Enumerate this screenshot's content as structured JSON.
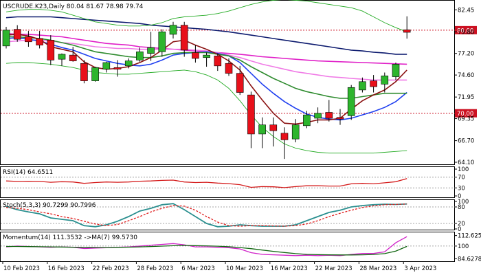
{
  "colors": {
    "bull": "#2db52d",
    "bear": "#e8101a",
    "level": "#cc1122",
    "sma_navy": "#0c1a6e",
    "sma_magenta": "#e020c8",
    "sma_pink": "#f07ae6",
    "ema_dark_red": "#8a1010",
    "ema_blue": "#1f3ff0",
    "ema_green": "#2e8b2e",
    "bollinger": "#22aa22",
    "rsi": "#d41a1a",
    "stoch_k": "#2a8f8f",
    "stoch_d": "#e02020",
    "momentum": "#d020c8",
    "momentum_ma": "#116611"
  },
  "chart_data": [
    {
      "type": "candlestick",
      "title": "USCRUDE.K23,Daily  80.04 81.67 78.98 79.74",
      "ylim": [
        64.1,
        83.3
      ],
      "yticks": [
        82.45,
        79.8,
        77.2,
        74.6,
        71.95,
        69.35,
        66.7,
        64.1
      ],
      "ytick_labels": [
        "82.45",
        "79.80",
        "77.20",
        "74.60",
        "71.95",
        "69.35",
        "66.70",
        "64.10"
      ],
      "x_labels": [
        {
          "index": 0,
          "label": "10 Feb 2023"
        },
        {
          "index": 4,
          "label": "16 Feb 2023"
        },
        {
          "index": 8,
          "label": "22 Feb 2023"
        },
        {
          "index": 12,
          "label": "28 Feb 2023"
        },
        {
          "index": 16,
          "label": "6 Mar 2023"
        },
        {
          "index": 20,
          "label": "10 Mar 2023"
        },
        {
          "index": 24,
          "label": "16 Mar 2023"
        },
        {
          "index": 28,
          "label": "22 Mar 2023"
        },
        {
          "index": 32,
          "label": "28 Mar 2023"
        },
        {
          "index": 36,
          "label": "3 Apr 2023"
        }
      ],
      "levels": [
        {
          "value": 80.0,
          "label": "80.00"
        },
        {
          "value": 70.0,
          "label": "70.00"
        }
      ],
      "candles": [
        {
          "o": 78.1,
          "h": 80.4,
          "l": 77.8,
          "c": 80.0
        },
        {
          "o": 80.1,
          "h": 80.6,
          "l": 78.6,
          "c": 78.9
        },
        {
          "o": 79.2,
          "h": 79.9,
          "l": 78.0,
          "c": 78.6
        },
        {
          "o": 79.0,
          "h": 79.9,
          "l": 77.8,
          "c": 78.2
        },
        {
          "o": 78.8,
          "h": 79.4,
          "l": 75.8,
          "c": 76.4
        },
        {
          "o": 76.5,
          "h": 77.2,
          "l": 75.7,
          "c": 77.1
        },
        {
          "o": 77.0,
          "h": 78.0,
          "l": 76.2,
          "c": 76.3
        },
        {
          "o": 76.0,
          "h": 76.4,
          "l": 73.6,
          "c": 73.9
        },
        {
          "o": 73.9,
          "h": 75.6,
          "l": 73.8,
          "c": 75.5
        },
        {
          "o": 75.3,
          "h": 76.2,
          "l": 74.9,
          "c": 76.1
        },
        {
          "o": 75.5,
          "h": 76.4,
          "l": 74.4,
          "c": 75.3
        },
        {
          "o": 75.7,
          "h": 76.6,
          "l": 75.4,
          "c": 76.3
        },
        {
          "o": 76.4,
          "h": 77.9,
          "l": 76.2,
          "c": 77.4
        },
        {
          "o": 77.2,
          "h": 79.8,
          "l": 76.3,
          "c": 77.9
        },
        {
          "o": 77.4,
          "h": 80.1,
          "l": 76.8,
          "c": 79.8
        },
        {
          "o": 79.5,
          "h": 81.0,
          "l": 79.0,
          "c": 80.6
        },
        {
          "o": 80.6,
          "h": 81.0,
          "l": 76.8,
          "c": 77.6
        },
        {
          "o": 77.3,
          "h": 78.2,
          "l": 76.1,
          "c": 76.6
        },
        {
          "o": 76.7,
          "h": 77.3,
          "l": 75.6,
          "c": 77.0
        },
        {
          "o": 76.9,
          "h": 77.2,
          "l": 75.1,
          "c": 75.7
        },
        {
          "o": 76.0,
          "h": 76.6,
          "l": 74.5,
          "c": 74.8
        },
        {
          "o": 74.8,
          "h": 75.7,
          "l": 72.2,
          "c": 72.5
        },
        {
          "o": 72.2,
          "h": 72.6,
          "l": 65.8,
          "c": 67.5
        },
        {
          "o": 67.5,
          "h": 69.5,
          "l": 65.8,
          "c": 68.6
        },
        {
          "o": 68.6,
          "h": 69.5,
          "l": 66.0,
          "c": 67.9
        },
        {
          "o": 67.6,
          "h": 68.3,
          "l": 64.5,
          "c": 66.8
        },
        {
          "o": 66.9,
          "h": 69.3,
          "l": 66.5,
          "c": 68.6
        },
        {
          "o": 68.5,
          "h": 70.3,
          "l": 68.2,
          "c": 69.8
        },
        {
          "o": 69.4,
          "h": 70.7,
          "l": 68.8,
          "c": 70.0
        },
        {
          "o": 70.1,
          "h": 71.6,
          "l": 69.0,
          "c": 69.4
        },
        {
          "o": 69.5,
          "h": 70.5,
          "l": 68.6,
          "c": 69.3
        },
        {
          "o": 69.7,
          "h": 73.4,
          "l": 69.2,
          "c": 73.1
        },
        {
          "o": 72.8,
          "h": 74.3,
          "l": 72.5,
          "c": 73.8
        },
        {
          "o": 73.9,
          "h": 74.6,
          "l": 72.5,
          "c": 73.2
        },
        {
          "o": 73.5,
          "h": 74.9,
          "l": 72.5,
          "c": 74.5
        },
        {
          "o": 74.4,
          "h": 76.1,
          "l": 74.0,
          "c": 75.9
        },
        {
          "o": 80.04,
          "h": 81.67,
          "l": 78.98,
          "c": 79.74
        }
      ],
      "overlays": [
        {
          "color_key": "sma_navy",
          "values": [
            81.5,
            81.6,
            81.6,
            81.6,
            81.6,
            81.5,
            81.4,
            81.3,
            81.2,
            81.1,
            81.0,
            80.9,
            80.8,
            80.6,
            80.5,
            80.4,
            80.3,
            80.2,
            80.1,
            79.95,
            79.8,
            79.6,
            79.4,
            79.2,
            79.0,
            78.8,
            78.6,
            78.4,
            78.2,
            78.0,
            77.8,
            77.6,
            77.5,
            77.35,
            77.25,
            77.1,
            77.1
          ]
        },
        {
          "color_key": "sma_magenta",
          "values": [
            79.6,
            79.5,
            79.5,
            79.4,
            79.3,
            79.2,
            79.0,
            78.8,
            78.6,
            78.4,
            78.3,
            78.2,
            78.0,
            77.9,
            77.8,
            77.7,
            77.6,
            77.5,
            77.4,
            77.3,
            77.2,
            77.1,
            76.95,
            76.8,
            76.7,
            76.6,
            76.5,
            76.4,
            76.3,
            76.25,
            76.2,
            76.15,
            76.1,
            76.05,
            76.0,
            75.95,
            75.9
          ]
        },
        {
          "color_key": "sma_pink",
          "values": [
            78.6,
            78.7,
            78.8,
            78.8,
            78.7,
            78.5,
            78.4,
            78.2,
            78.0,
            77.9,
            77.8,
            77.8,
            77.7,
            77.7,
            77.7,
            77.7,
            77.7,
            77.6,
            77.5,
            77.3,
            77.0,
            76.7,
            76.3,
            75.9,
            75.6,
            75.3,
            75.0,
            74.8,
            74.6,
            74.4,
            74.3,
            74.2,
            74.1,
            74.0,
            74.0,
            74.0,
            74.0
          ]
        },
        {
          "color_key": "ema_blue",
          "values": [
            79.0,
            79.1,
            78.9,
            78.7,
            78.3,
            77.9,
            77.6,
            77.1,
            76.6,
            76.3,
            76.0,
            75.8,
            75.7,
            75.9,
            76.4,
            77.0,
            77.2,
            77.3,
            77.4,
            77.2,
            76.9,
            76.1,
            74.8,
            73.5,
            72.4,
            71.4,
            70.6,
            69.9,
            69.5,
            69.3,
            69.2,
            69.4,
            69.8,
            70.2,
            70.7,
            71.4,
            72.5
          ]
        },
        {
          "color_key": "ema_green",
          "values": [
            79.2,
            79.2,
            79.1,
            79.0,
            78.8,
            78.5,
            78.2,
            77.8,
            77.4,
            77.2,
            77.0,
            76.8,
            76.7,
            76.7,
            76.9,
            77.2,
            77.3,
            77.3,
            77.3,
            77.1,
            76.9,
            76.4,
            75.6,
            74.9,
            74.2,
            73.6,
            73.0,
            72.6,
            72.3,
            72.0,
            71.8,
            71.8,
            72.0,
            72.2,
            72.4,
            72.4,
            72.4
          ]
        },
        {
          "color_key": "ema_dark_red",
          "values": [
            79.4,
            79.5,
            79.3,
            78.9,
            78.0,
            77.7,
            77.4,
            76.2,
            75.5,
            75.3,
            75.4,
            75.6,
            76.1,
            76.7,
            77.6,
            78.6,
            78.8,
            78.2,
            77.7,
            77.1,
            76.3,
            75.2,
            73.3,
            71.6,
            70.0,
            68.8,
            68.7,
            68.9,
            69.2,
            69.2,
            69.4,
            70.5,
            71.5,
            72.2,
            72.8,
            73.8,
            75.2
          ]
        },
        {
          "color_key": "bollinger",
          "values": [
            76.0,
            76.1,
            76.1,
            76.0,
            75.9,
            75.7,
            75.5,
            75.2,
            74.9,
            74.8,
            74.7,
            74.7,
            74.8,
            74.9,
            75.0,
            75.1,
            75.2,
            75.0,
            74.6,
            74.0,
            73.0,
            71.5,
            69.8,
            68.3,
            67.2,
            66.3,
            65.8,
            65.5,
            65.3,
            65.2,
            65.2,
            65.2,
            65.2,
            65.2,
            65.3,
            65.4,
            65.5
          ]
        },
        {
          "color_key": "bollinger",
          "values": [
            82.2,
            82.4,
            82.5,
            82.5,
            82.4,
            82.2,
            81.8,
            81.4,
            81.0,
            80.8,
            80.6,
            80.5,
            80.5,
            80.6,
            80.9,
            81.4,
            81.6,
            81.7,
            81.8,
            82.0,
            82.3,
            82.7,
            83.1,
            83.4,
            83.6,
            83.7,
            83.6,
            83.5,
            83.3,
            83.1,
            82.9,
            82.7,
            82.3,
            81.6,
            80.9,
            80.3,
            79.8
          ]
        }
      ]
    },
    {
      "type": "line",
      "title": "RSI(14) 64.6511",
      "ylim": [
        0,
        100
      ],
      "ytick_labels": [
        "100",
        "70",
        "30",
        "0"
      ],
      "ytick_values": [
        100,
        70,
        30,
        0
      ],
      "levels": [
        70,
        30
      ],
      "series": [
        {
          "color_key": "rsi",
          "values": [
            56,
            54,
            55,
            54,
            51,
            53,
            52,
            47,
            50,
            52,
            51,
            52,
            55,
            56,
            58,
            59,
            52,
            50,
            51,
            48,
            46,
            42,
            32,
            35,
            34,
            31,
            35,
            38,
            38,
            37,
            37,
            45,
            47,
            45,
            49,
            53,
            64.65
          ]
        }
      ]
    },
    {
      "type": "line",
      "title": "Stoch(5,3,3) 90.7299 90.7996",
      "ylim": [
        0,
        100
      ],
      "ytick_labels": [
        "100",
        "80",
        "20",
        "0"
      ],
      "ytick_values": [
        100,
        80,
        20,
        0
      ],
      "levels": [
        80,
        20
      ],
      "series": [
        {
          "color_key": "stoch_k",
          "values": [
            82,
            70,
            62,
            55,
            40,
            35,
            30,
            12,
            8,
            15,
            28,
            45,
            65,
            75,
            88,
            92,
            70,
            45,
            20,
            8,
            10,
            15,
            12,
            10,
            10,
            10,
            15,
            30,
            45,
            60,
            68,
            80,
            85,
            88,
            90,
            89,
            90.73
          ]
        },
        {
          "color_key": "stoch_d",
          "values": [
            78,
            75,
            70,
            62,
            55,
            45,
            38,
            28,
            18,
            12,
            16,
            30,
            45,
            62,
            75,
            85,
            83,
            68,
            45,
            25,
            12,
            10,
            12,
            12,
            11,
            10,
            12,
            18,
            30,
            45,
            57,
            68,
            78,
            84,
            88,
            89,
            90.8
          ]
        }
      ]
    },
    {
      "type": "line",
      "title": "Momentum(14) 111.3532  ->MA(7) 99.5730",
      "ylim": [
        82.5,
        114.0
      ],
      "ytick_labels": [
        "112.6258",
        "100",
        "84.6278"
      ],
      "ytick_values": [
        112.6258,
        100,
        84.6278
      ],
      "levels": [
        100
      ],
      "series": [
        {
          "color_key": "momentum",
          "values": [
            99,
            100,
            99.5,
            99,
            98.5,
            99,
            98.5,
            97,
            97.5,
            98,
            98.5,
            99,
            100,
            101,
            102,
            103,
            101.5,
            99,
            99,
            98.5,
            98,
            96.5,
            92,
            90,
            89.5,
            89,
            88.5,
            89,
            88.5,
            89,
            88.5,
            90,
            91,
            91,
            93,
            104,
            111.35
          ]
        },
        {
          "color_key": "momentum_ma",
          "values": [
            99.5,
            99.5,
            99.3,
            99.2,
            99,
            98.8,
            98.6,
            98.4,
            98.3,
            98.2,
            98.4,
            98.7,
            99,
            99.4,
            99.9,
            100.4,
            100.8,
            100.5,
            100.2,
            99.8,
            99.2,
            98.2,
            96.8,
            95.2,
            93.6,
            92.2,
            90.9,
            90,
            89.6,
            89.4,
            89.3,
            89.3,
            89.5,
            89.9,
            90.9,
            93.9,
            99.57
          ]
        }
      ]
    }
  ]
}
